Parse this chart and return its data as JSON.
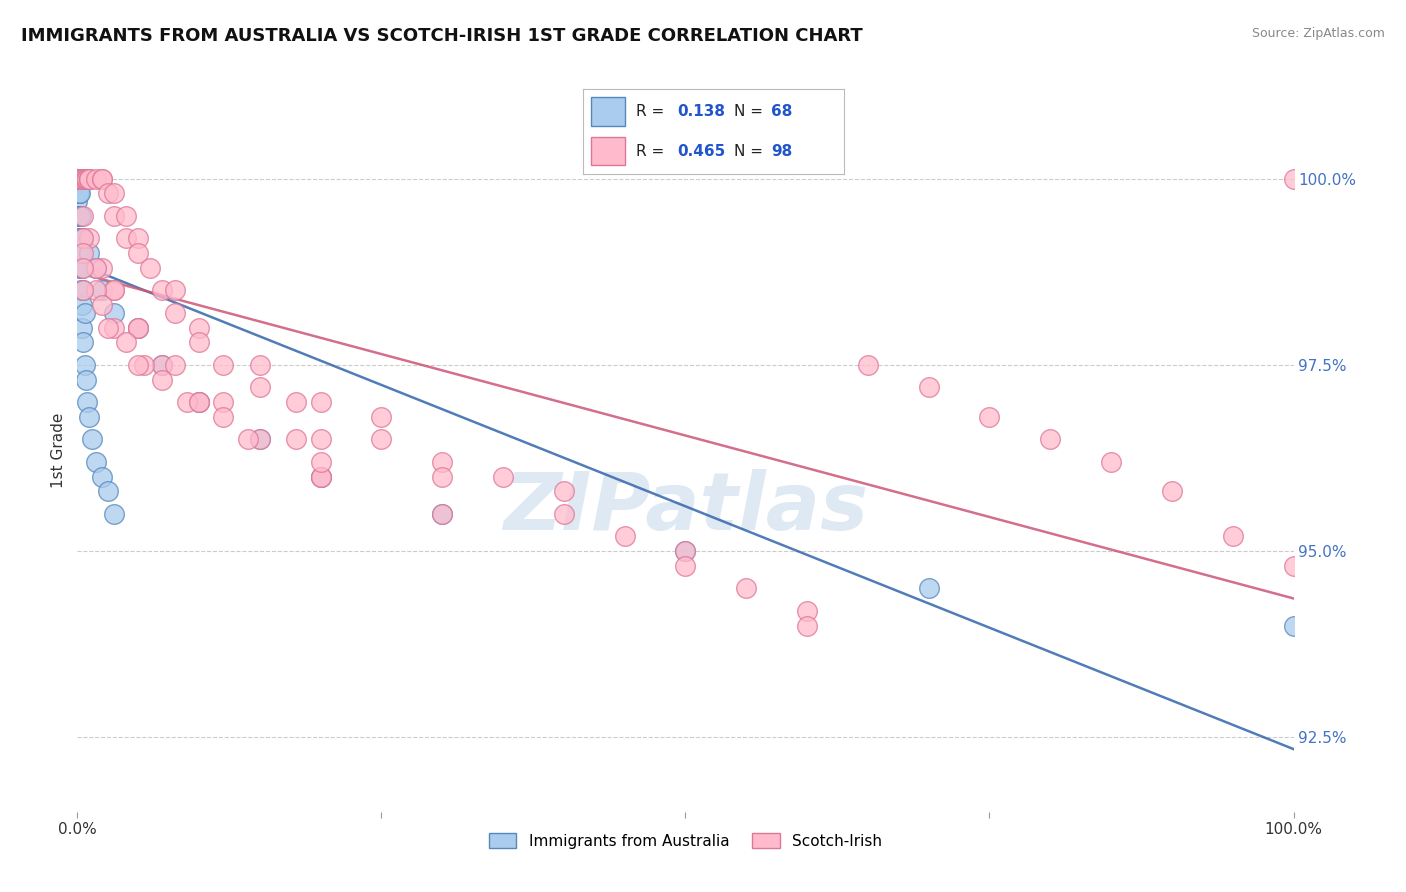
{
  "title": "IMMIGRANTS FROM AUSTRALIA VS SCOTCH-IRISH 1ST GRADE CORRELATION CHART",
  "source": "Source: ZipAtlas.com",
  "ylabel": "1st Grade",
  "xmin": 0.0,
  "xmax": 100.0,
  "ymin": 91.5,
  "ymax": 101.2,
  "watermark": "ZIPatlas",
  "ytick_positions": [
    92.5,
    95.0,
    97.5,
    100.0
  ],
  "ytick_labels": [
    "92.5%",
    "95.0%",
    "97.5%",
    "100.0%"
  ],
  "grid_color": "#cccccc",
  "bg_color": "#ffffff",
  "series": [
    {
      "name": "Immigrants from Australia",
      "R": 0.138,
      "N": 68,
      "color": "#aaccee",
      "edge_color": "#5588bb",
      "trend_color": "#3366aa",
      "x": [
        0.0,
        0.0,
        0.0,
        0.0,
        0.0,
        0.0,
        0.0,
        0.0,
        0.05,
        0.05,
        0.05,
        0.05,
        0.1,
        0.1,
        0.1,
        0.1,
        0.15,
        0.15,
        0.15,
        0.2,
        0.2,
        0.2,
        0.25,
        0.3,
        0.3,
        0.35,
        0.4,
        0.5,
        0.6,
        0.7,
        0.8,
        1.0,
        1.2,
        1.5,
        2.0,
        2.5,
        3.0,
        0.0,
        0.0,
        0.0,
        0.05,
        0.1,
        0.15,
        0.2,
        0.25,
        0.3,
        0.4,
        0.5,
        0.6,
        0.0,
        0.0,
        0.1,
        0.2,
        0.3,
        0.5,
        1.0,
        1.5,
        2.0,
        3.0,
        5.0,
        7.0,
        10.0,
        15.0,
        20.0,
        30.0,
        50.0,
        70.0,
        100.0
      ],
      "y": [
        100.0,
        100.0,
        100.0,
        100.0,
        100.0,
        99.8,
        99.7,
        99.5,
        100.0,
        99.8,
        99.5,
        99.2,
        100.0,
        99.8,
        99.5,
        99.0,
        99.8,
        99.5,
        99.0,
        99.5,
        99.2,
        98.8,
        99.0,
        98.8,
        98.5,
        98.3,
        98.0,
        97.8,
        97.5,
        97.3,
        97.0,
        96.8,
        96.5,
        96.2,
        96.0,
        95.8,
        95.5,
        100.0,
        100.0,
        100.0,
        100.0,
        100.0,
        99.8,
        99.5,
        99.2,
        99.0,
        98.8,
        98.5,
        98.2,
        100.0,
        100.0,
        100.0,
        99.8,
        99.5,
        99.2,
        99.0,
        98.8,
        98.5,
        98.2,
        98.0,
        97.5,
        97.0,
        96.5,
        96.0,
        95.5,
        95.0,
        94.5,
        94.0
      ]
    },
    {
      "name": "Scotch-Irish",
      "R": 0.465,
      "N": 98,
      "color": "#ffbbcc",
      "edge_color": "#dd7799",
      "trend_color": "#cc5577",
      "x": [
        0.0,
        0.0,
        0.0,
        0.0,
        0.0,
        0.0,
        0.0,
        0.0,
        0.0,
        0.0,
        0.2,
        0.3,
        0.4,
        0.5,
        0.6,
        0.7,
        0.8,
        1.0,
        1.0,
        1.0,
        1.5,
        2.0,
        2.0,
        2.5,
        3.0,
        3.0,
        4.0,
        4.0,
        5.0,
        5.0,
        6.0,
        7.0,
        8.0,
        8.0,
        10.0,
        10.0,
        12.0,
        15.0,
        15.0,
        18.0,
        20.0,
        25.0,
        25.0,
        30.0,
        35.0,
        40.0,
        40.0,
        45.0,
        50.0,
        50.0,
        55.0,
        60.0,
        60.0,
        65.0,
        70.0,
        75.0,
        80.0,
        85.0,
        90.0,
        95.0,
        100.0,
        100.0,
        0.5,
        1.0,
        2.0,
        3.0,
        5.0,
        7.0,
        10.0,
        15.0,
        20.0,
        30.0,
        0.5,
        1.5,
        3.0,
        5.0,
        8.0,
        12.0,
        20.0,
        30.0,
        0.5,
        1.5,
        3.0,
        5.5,
        9.0,
        14.0,
        20.0,
        0.5,
        2.0,
        4.0,
        7.0,
        12.0,
        20.0,
        0.5,
        2.5,
        5.0,
        10.0,
        18.0
      ],
      "y": [
        100.0,
        100.0,
        100.0,
        100.0,
        100.0,
        100.0,
        100.0,
        100.0,
        100.0,
        100.0,
        100.0,
        100.0,
        100.0,
        100.0,
        100.0,
        100.0,
        100.0,
        100.0,
        100.0,
        100.0,
        100.0,
        100.0,
        100.0,
        99.8,
        99.8,
        99.5,
        99.5,
        99.2,
        99.2,
        99.0,
        98.8,
        98.5,
        98.5,
        98.2,
        98.0,
        97.8,
        97.5,
        97.5,
        97.2,
        97.0,
        97.0,
        96.8,
        96.5,
        96.2,
        96.0,
        95.8,
        95.5,
        95.2,
        95.0,
        94.8,
        94.5,
        94.2,
        94.0,
        97.5,
        97.2,
        96.8,
        96.5,
        96.2,
        95.8,
        95.2,
        94.8,
        100.0,
        99.5,
        99.2,
        98.8,
        98.5,
        98.0,
        97.5,
        97.0,
        96.5,
        96.0,
        95.5,
        99.2,
        98.8,
        98.5,
        98.0,
        97.5,
        97.0,
        96.5,
        96.0,
        99.0,
        98.5,
        98.0,
        97.5,
        97.0,
        96.5,
        96.0,
        98.8,
        98.3,
        97.8,
        97.3,
        96.8,
        96.2,
        98.5,
        98.0,
        97.5,
        97.0,
        96.5
      ]
    }
  ]
}
